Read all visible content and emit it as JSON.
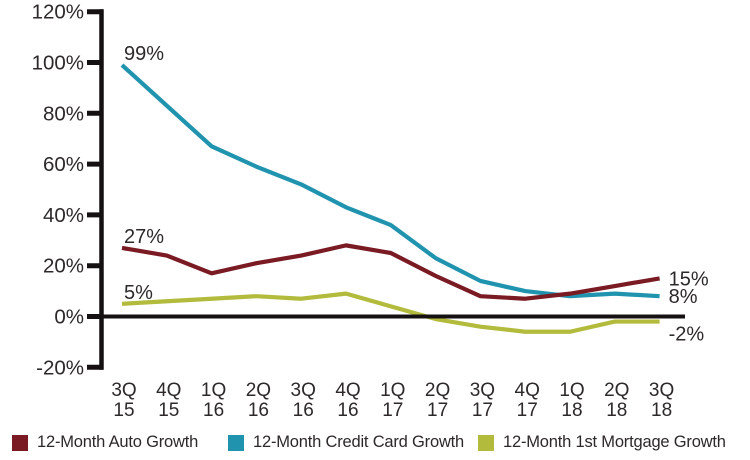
{
  "chart_data": {
    "type": "line",
    "title": "",
    "xlabel": "",
    "ylabel": "",
    "grid": false,
    "legend_position": "bottom",
    "ylim": [
      -20,
      120
    ],
    "ytick_step": 20,
    "ytick_labels": [
      "120%",
      "100%",
      "80%",
      "60%",
      "40%",
      "20%",
      "0%",
      "-20%"
    ],
    "categories_line1": [
      "3Q",
      "4Q",
      "1Q",
      "2Q",
      "3Q",
      "4Q",
      "1Q",
      "2Q",
      "3Q",
      "4Q",
      "1Q",
      "2Q",
      "3Q"
    ],
    "categories_line2": [
      "15",
      "15",
      "16",
      "16",
      "16",
      "16",
      "17",
      "17",
      "17",
      "17",
      "18",
      "18",
      "18"
    ],
    "axis_color": "#151112",
    "text_color": "#2d292a",
    "series": [
      {
        "name": "12-Month Auto Growth",
        "color": "#7a1a23",
        "values": [
          27,
          24,
          17,
          21,
          24,
          28,
          25,
          16,
          8,
          7,
          9,
          12,
          15
        ],
        "start_label": "27%",
        "end_label": "15%"
      },
      {
        "name": "12-Month Credit Card Growth",
        "color": "#2093ae",
        "values": [
          99,
          83,
          67,
          59,
          52,
          43,
          36,
          23,
          14,
          10,
          8,
          9,
          8
        ],
        "start_label": "99%",
        "end_label": "8%"
      },
      {
        "name": "12-Month 1st Mortgage Growth",
        "color": "#b2bb3b",
        "values": [
          5,
          6,
          7,
          8,
          7,
          9,
          4,
          -1,
          -4,
          -6,
          -6,
          -2,
          -2
        ],
        "start_label": "5%",
        "end_label": "-2%"
      }
    ]
  }
}
